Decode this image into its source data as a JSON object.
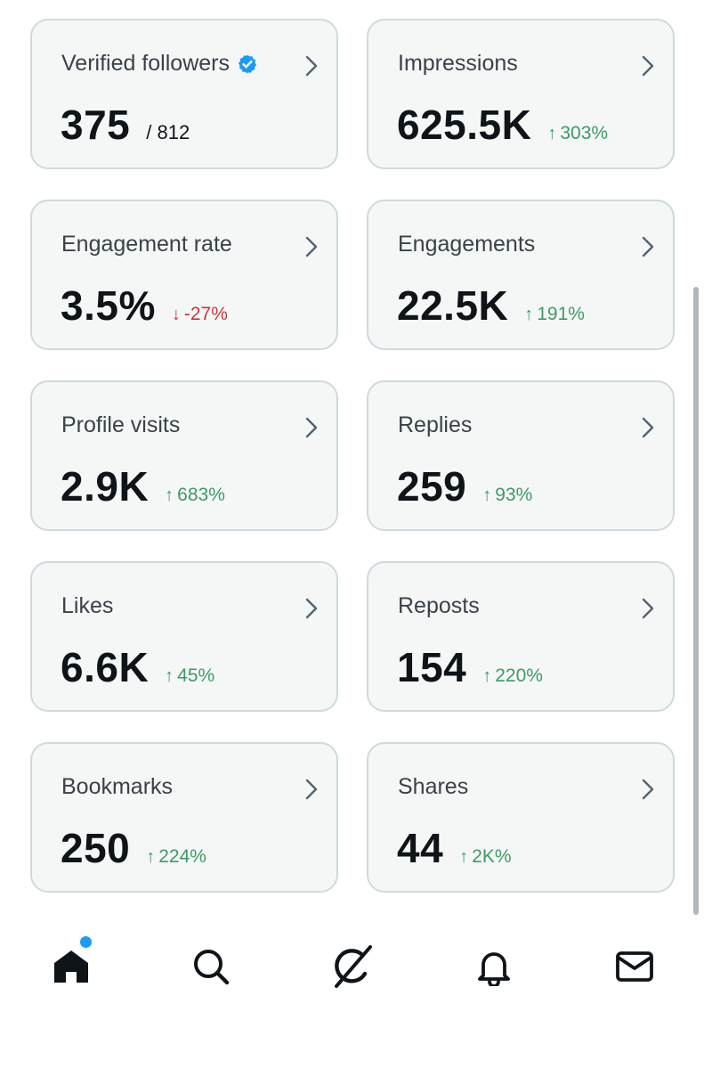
{
  "cards": [
    {
      "label": "Verified followers",
      "value": "375",
      "total": "/ 812",
      "change": "",
      "trend": "none",
      "verified": true
    },
    {
      "label": "Impressions",
      "value": "625.5K",
      "total": "",
      "change": "303%",
      "trend": "up",
      "verified": false
    },
    {
      "label": "Engagement rate",
      "value": "3.5%",
      "total": "",
      "change": "-27%",
      "trend": "down",
      "verified": false
    },
    {
      "label": "Engagements",
      "value": "22.5K",
      "total": "",
      "change": "191%",
      "trend": "up",
      "verified": false
    },
    {
      "label": "Profile visits",
      "value": "2.9K",
      "total": "",
      "change": "683%",
      "trend": "up",
      "verified": false
    },
    {
      "label": "Replies",
      "value": "259",
      "total": "",
      "change": "93%",
      "trend": "up",
      "verified": false
    },
    {
      "label": "Likes",
      "value": "6.6K",
      "total": "",
      "change": "45%",
      "trend": "up",
      "verified": false
    },
    {
      "label": "Reposts",
      "value": "154",
      "total": "",
      "change": "220%",
      "trend": "up",
      "verified": false
    },
    {
      "label": "Bookmarks",
      "value": "250",
      "total": "",
      "change": "224%",
      "trend": "up",
      "verified": false
    },
    {
      "label": "Shares",
      "value": "44",
      "total": "",
      "change": "2K%",
      "trend": "up",
      "verified": false
    }
  ],
  "icons": {
    "chevron": "chevron-right-icon",
    "verified": "verified-badge-icon",
    "up": "arrow-up-icon",
    "down": "arrow-down-icon"
  },
  "bottom_nav": [
    {
      "icon": "home-icon",
      "active": true,
      "has_dot": true
    },
    {
      "icon": "search-icon",
      "active": false,
      "has_dot": false
    },
    {
      "icon": "grok-icon",
      "active": false,
      "has_dot": false
    },
    {
      "icon": "bell-icon",
      "active": false,
      "has_dot": false
    },
    {
      "icon": "mail-icon",
      "active": false,
      "has_dot": false
    }
  ],
  "colors": {
    "card_bg": "#f5f7f7",
    "card_border": "#cfd9de",
    "up": "#3f9a64",
    "down": "#c9373d",
    "verified": "#1d9bf0"
  }
}
